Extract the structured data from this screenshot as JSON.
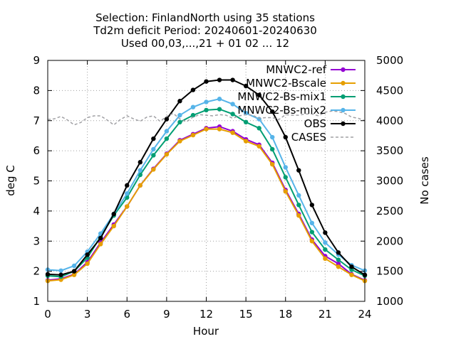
{
  "chart_data": {
    "type": "line",
    "title_lines": [
      "Selection: FinlandNorth using    35 stations",
      "Td2m deficit   Period: 20240601-20240630",
      "Used 00,03,...,21 + 01 02 ... 12"
    ],
    "xlabel": "Hour",
    "ylabel": "deg C",
    "y2label": "No cases",
    "xlim": [
      0,
      24
    ],
    "ylim": [
      1,
      9
    ],
    "y2lim": [
      1000,
      5000
    ],
    "xticks": [
      "0",
      "3",
      "6",
      "9",
      "12",
      "15",
      "18",
      "21",
      "24"
    ],
    "yticks": [
      "1",
      "2",
      "3",
      "4",
      "5",
      "6",
      "7",
      "8",
      "9"
    ],
    "y2ticks": [
      "1000",
      "1500",
      "2000",
      "2500",
      "3000",
      "3500",
      "4000",
      "4500",
      "5000"
    ],
    "grid": true,
    "legend_position": "top-right",
    "x": [
      0,
      1,
      2,
      3,
      4,
      5,
      6,
      7,
      8,
      9,
      10,
      11,
      12,
      13,
      14,
      15,
      16,
      17,
      18,
      19,
      20,
      21,
      22,
      23,
      24
    ],
    "series": [
      {
        "name": "MNWC2-ref",
        "color": "#9400d3",
        "axis": "y1",
        "style": "line-point",
        "values": [
          1.7,
          1.75,
          1.9,
          2.3,
          2.95,
          3.55,
          4.15,
          4.85,
          5.4,
          5.9,
          6.35,
          6.55,
          6.75,
          6.8,
          6.65,
          6.38,
          6.2,
          5.6,
          4.7,
          3.9,
          3.05,
          2.5,
          2.25,
          1.9,
          1.7
        ]
      },
      {
        "name": "MNWC2-Bscale",
        "color": "#e69f00",
        "axis": "y1",
        "style": "line-point",
        "values": [
          1.68,
          1.72,
          1.88,
          2.25,
          2.9,
          3.5,
          4.15,
          4.85,
          5.38,
          5.88,
          6.32,
          6.52,
          6.72,
          6.72,
          6.6,
          6.32,
          6.15,
          5.55,
          4.65,
          3.85,
          3.0,
          2.42,
          2.15,
          1.88,
          1.68
        ]
      },
      {
        "name": "MNWC2-Bs-mix1",
        "color": "#009e73",
        "axis": "y1",
        "style": "line-point",
        "values": [
          1.85,
          1.82,
          2.0,
          2.45,
          3.15,
          3.85,
          4.45,
          5.2,
          5.85,
          6.4,
          6.95,
          7.18,
          7.35,
          7.38,
          7.22,
          6.95,
          6.75,
          6.05,
          5.12,
          4.2,
          3.3,
          2.72,
          2.38,
          2.05,
          1.85
        ]
      },
      {
        "name": "MNWC2-Bs-mix2",
        "color": "#56b4e9",
        "axis": "y1",
        "style": "line-point",
        "values": [
          2.05,
          2.02,
          2.18,
          2.65,
          3.25,
          3.9,
          4.58,
          5.35,
          6.05,
          6.65,
          7.18,
          7.45,
          7.62,
          7.72,
          7.55,
          7.25,
          7.05,
          6.45,
          5.45,
          4.52,
          3.6,
          2.95,
          2.55,
          2.2,
          2.02
        ]
      },
      {
        "name": "OBS",
        "color": "#000000",
        "axis": "y1",
        "style": "line-point",
        "values": [
          1.9,
          1.88,
          2.0,
          2.55,
          3.1,
          3.9,
          4.85,
          5.62,
          6.4,
          7.05,
          7.65,
          8.02,
          8.3,
          8.35,
          8.35,
          8.15,
          7.85,
          7.3,
          6.45,
          5.35,
          4.2,
          3.28,
          2.62,
          2.15,
          1.88
        ]
      },
      {
        "name": "CASES",
        "color": "#a0a0a4",
        "axis": "y2",
        "style": "dashed",
        "x": [
          0,
          0.5,
          1,
          1.5,
          2,
          2.5,
          3,
          3.5,
          4,
          4.5,
          5,
          5.5,
          6,
          6.5,
          7,
          7.5,
          8,
          8.5,
          9,
          9.5,
          10,
          10.5,
          11,
          11.5,
          12,
          12.5,
          13,
          13.5,
          14,
          14.5,
          15,
          15.5,
          16,
          16.5,
          17,
          17.5,
          18,
          18.5,
          19,
          19.5,
          20,
          20.5,
          21,
          21.5,
          22,
          22.5,
          23,
          23.5,
          24
        ],
        "values": [
          4020,
          4030,
          4070,
          4010,
          3930,
          3970,
          4050,
          4080,
          4080,
          4010,
          3930,
          4020,
          4080,
          4030,
          3990,
          4060,
          4080,
          3990,
          4070,
          4120,
          4030,
          3980,
          4060,
          4100,
          4090,
          4080,
          4100,
          4090,
          4040,
          4080,
          4100,
          4090,
          4040,
          4050,
          4050,
          4020,
          4100,
          4090,
          4090,
          4110,
          4110,
          4080,
          4140,
          4160,
          4150,
          4120,
          4060,
          4040,
          4000
        ]
      }
    ]
  }
}
